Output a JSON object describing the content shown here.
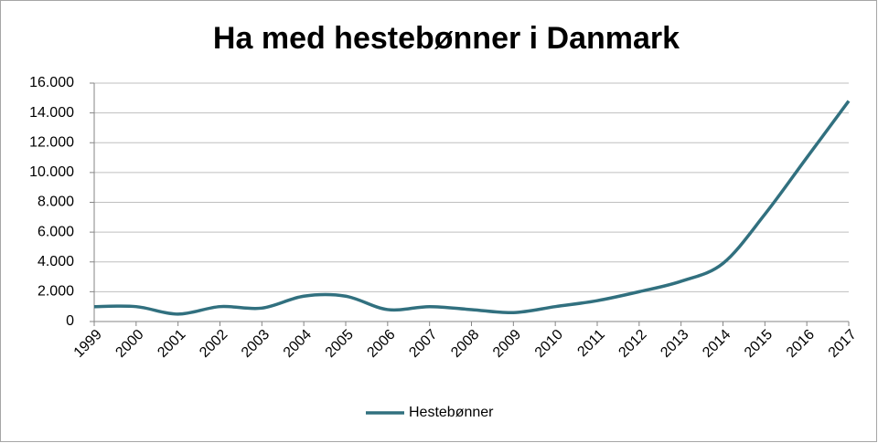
{
  "chart_data": {
    "type": "line",
    "title": "Ha med hestebønner i Danmark",
    "categories": [
      "1999",
      "2000",
      "2001",
      "2002",
      "2003",
      "2004",
      "2005",
      "2006",
      "2007",
      "2008",
      "2009",
      "2010",
      "2011",
      "2012",
      "2013",
      "2014",
      "2015",
      "2016",
      "2017"
    ],
    "series": [
      {
        "name": "Hestebønner",
        "color": "#31707f",
        "values": [
          1000,
          1000,
          500,
          1000,
          900,
          1700,
          1700,
          800,
          1000,
          800,
          600,
          1000,
          1400,
          2000,
          2700,
          3900,
          7200,
          11000,
          14800
        ]
      }
    ],
    "ylim": [
      0,
      16000
    ],
    "yticks": [
      0,
      {
        "value": 2000,
        "label": "2.000"
      },
      {
        "value": 4000,
        "label": "4.000"
      },
      {
        "value": 6000,
        "label": "6.000"
      },
      {
        "value": 8000,
        "label": "8.000"
      },
      {
        "value": 10000,
        "label": "10.000"
      },
      {
        "value": 12000,
        "label": "12.000"
      },
      {
        "value": 14000,
        "label": "14.000"
      },
      {
        "value": 16000,
        "label": "16.000"
      }
    ],
    "grid": true,
    "legend": "bottom"
  }
}
